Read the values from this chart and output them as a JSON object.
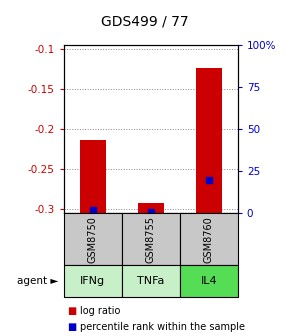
{
  "title": "GDS499 / 77",
  "samples": [
    "GSM8750",
    "GSM8755",
    "GSM8760"
  ],
  "agents": [
    "IFNg",
    "TNFa",
    "IL4"
  ],
  "log_ratios": [
    -0.213,
    -0.292,
    -0.123
  ],
  "percentile_ranks": [
    2,
    1,
    20
  ],
  "ylim_min": -0.305,
  "ylim_max": -0.095,
  "yticks": [
    -0.3,
    -0.25,
    -0.2,
    -0.15,
    -0.1
  ],
  "ytick_labels": [
    "-0.3",
    "-0.25",
    "-0.2",
    "-0.15",
    "-0.1"
  ],
  "y2ticks": [
    0,
    25,
    50,
    75,
    100
  ],
  "y2tick_labels": [
    "0",
    "25",
    "50",
    "75",
    "100%"
  ],
  "bar_color": "#cc0000",
  "percentile_color": "#0000cc",
  "sample_bg": "#c8c8c8",
  "agent_colors": [
    "#c8f0c8",
    "#c8f0c8",
    "#55dd55"
  ],
  "grid_color": "#888888",
  "left_tick_color": "#cc0000",
  "right_tick_color": "#0000cc",
  "legend_log_color": "#cc0000",
  "legend_pct_color": "#0000cc"
}
